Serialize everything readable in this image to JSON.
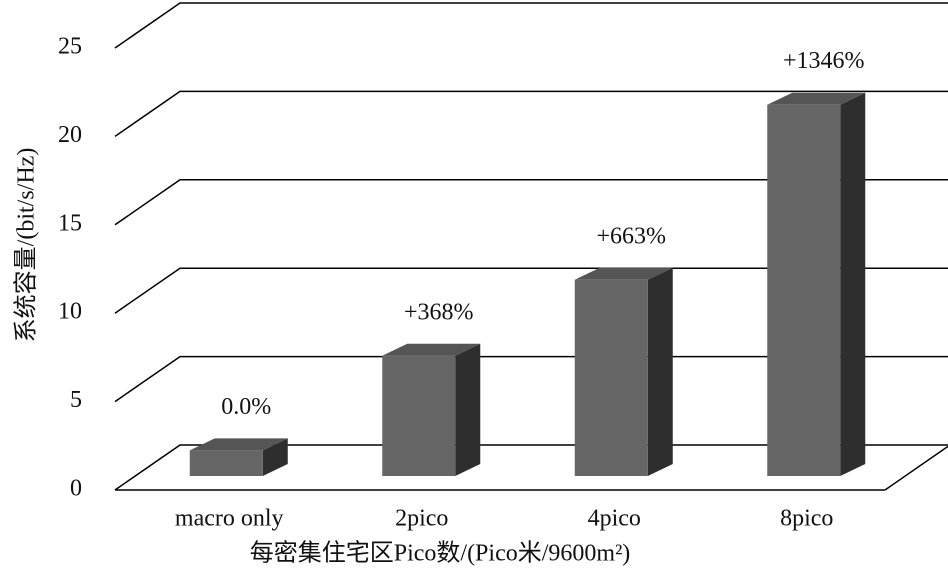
{
  "chart_data": {
    "type": "bar3d",
    "x_label": "每密集住宅区Pico数/(Pico米/9600m²)",
    "y_label": "系统容量/(bit/s/Hz)",
    "categories": [
      "macro only",
      "2pico",
      "4pico",
      "8pico"
    ],
    "values": [
      1.45,
      6.8,
      11.1,
      21.0
    ],
    "annotations": [
      "0.0%",
      "+368%",
      "+663%",
      "+1346%"
    ],
    "color": "#666666",
    "ylim": [
      0,
      25
    ],
    "yticks": [
      0,
      5,
      10,
      15,
      20,
      25
    ],
    "grid": true
  }
}
